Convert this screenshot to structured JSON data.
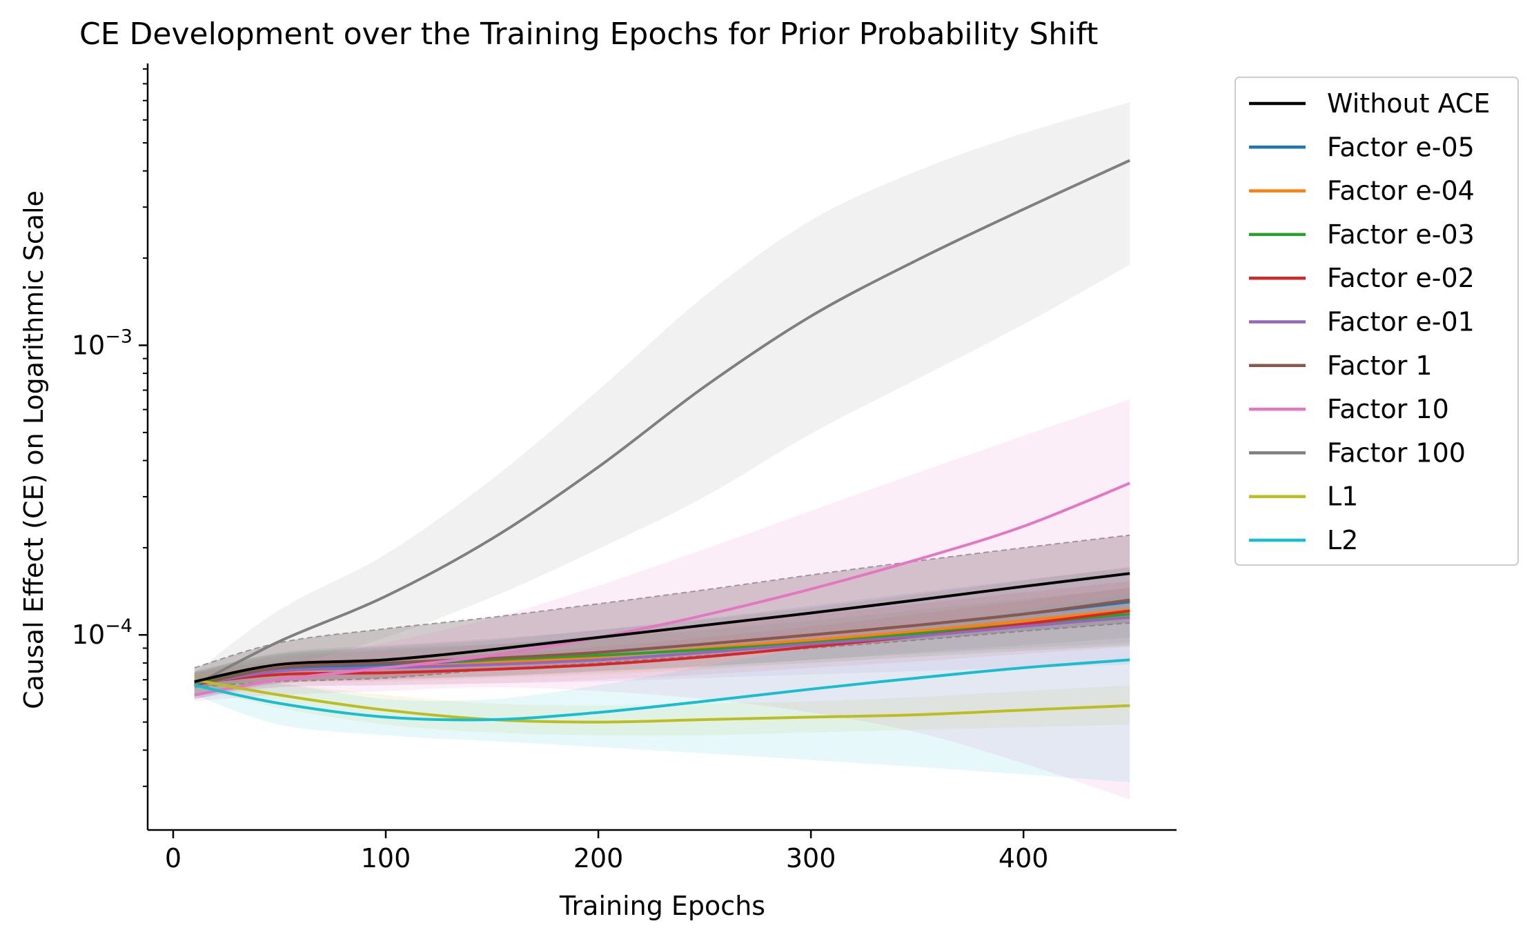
{
  "chart_data": {
    "type": "line",
    "title": "CE Development over the Training Epochs for Prior Probability Shift",
    "xlabel": "Training Epochs",
    "ylabel": "Causal Effect (CE) on Logarithmic Scale",
    "y_scale": "log",
    "xlim": [
      -12,
      472
    ],
    "ylim": [
      2.12e-05,
      0.0094
    ],
    "x_ticks": [
      0,
      100,
      200,
      300,
      400
    ],
    "y_major_ticks": [
      0.0001,
      0.001
    ],
    "y_major_labels": [
      {
        "base": "10",
        "exp": "−4"
      },
      {
        "base": "10",
        "exp": "−3"
      }
    ],
    "legend_position": "outside-right",
    "grid": false,
    "x": [
      10,
      50,
      100,
      150,
      200,
      250,
      300,
      350,
      400,
      450
    ],
    "series": [
      {
        "name": "Without ACE",
        "color": "#000000",
        "values": [
          6.9e-05,
          7.9e-05,
          8.2e-05,
          8.9e-05,
          9.8e-05,
          0.000108,
          0.000119,
          0.000132,
          0.000147,
          0.000163
        ],
        "band": {
          "lower": [
            6.6e-05,
            6.9e-05,
            7.1e-05,
            7.6e-05,
            8e-05,
            8.5e-05,
            9e-05,
            9.6e-05,
            0.000103,
            0.00011
          ],
          "upper": [
            7.7e-05,
            9.4e-05,
            0.000105,
            0.000115,
            0.000128,
            0.000143,
            0.000161,
            0.00018,
            0.0002,
            0.000221
          ],
          "color": "#7f6b6b",
          "opacity": 0.35,
          "dashed_edge": true
        }
      },
      {
        "name": "Factor e-05",
        "color": "#1f77b4",
        "values": [
          6.8e-05,
          7.6e-05,
          7.9e-05,
          8.2e-05,
          8.7e-05,
          9.3e-05,
          0.0001,
          0.000108,
          0.000118,
          0.00013
        ],
        "band": {
          "lower": [
            6e-05,
            6.8e-05,
            7e-05,
            7.2e-05,
            7.5e-05,
            7.8e-05,
            8.2e-05,
            8.6e-05,
            9e-05,
            9.4e-05
          ],
          "upper": [
            7.5e-05,
            8.6e-05,
            9.1e-05,
            9.6e-05,
            0.000104,
            0.000114,
            0.000126,
            0.00014,
            0.000155,
            0.00017
          ],
          "color": "#1f77b4",
          "opacity": 0.1
        }
      },
      {
        "name": "Factor e-04",
        "color": "#ff7f0e",
        "values": [
          6.8e-05,
          7.5e-05,
          7.7e-05,
          8e-05,
          8.4e-05,
          9e-05,
          9.6e-05,
          0.000103,
          0.000112,
          0.000122
        ],
        "band": {
          "lower": [
            6.2e-05,
            6.8e-05,
            6.9e-05,
            7.1e-05,
            7.3e-05,
            7.6e-05,
            8e-05,
            8.4e-05,
            8.8e-05,
            9.2e-05
          ],
          "upper": [
            7.4e-05,
            8.4e-05,
            8.8e-05,
            9.2e-05,
            9.8e-05,
            0.000107,
            0.000117,
            0.000128,
            0.00014,
            0.000153
          ],
          "color": "#ff7f0e",
          "opacity": 0.08
        }
      },
      {
        "name": "Factor e-03",
        "color": "#2ca02c",
        "values": [
          6.8e-05,
          7.7e-05,
          8e-05,
          8.2e-05,
          8.5e-05,
          8.9e-05,
          9.4e-05,
          0.000101,
          0.000109,
          0.000118
        ],
        "band": {
          "lower": [
            6.1e-05,
            6.9e-05,
            7.1e-05,
            7.2e-05,
            7.4e-05,
            7.7e-05,
            8e-05,
            8.4e-05,
            8.8e-05,
            9.2e-05
          ],
          "upper": [
            7.5e-05,
            8.6e-05,
            9e-05,
            9.3e-05,
            9.8e-05,
            0.000104,
            0.000112,
            0.000122,
            0.000133,
            0.000145
          ],
          "color": "#2ca02c",
          "opacity": 0.08
        }
      },
      {
        "name": "Factor e-02",
        "color": "#d62728",
        "values": [
          6.8e-05,
          7.3e-05,
          7.4e-05,
          7.6e-05,
          7.9e-05,
          8.4e-05,
          9.1e-05,
          9.9e-05,
          0.000109,
          0.000121
        ],
        "band": {
          "lower": [
            6.2e-05,
            6.6e-05,
            6.7e-05,
            6.8e-05,
            7e-05,
            7.3e-05,
            7.7e-05,
            8.1e-05,
            8.6e-05,
            9.1e-05
          ],
          "upper": [
            7.4e-05,
            8.1e-05,
            8.3e-05,
            8.6e-05,
            9.1e-05,
            9.8e-05,
            0.000107,
            0.000118,
            0.000131,
            0.000146
          ],
          "color": "#d62728",
          "opacity": 0.08
        }
      },
      {
        "name": "Factor e-01",
        "color": "#9467bd",
        "values": [
          6.7e-05,
          7.5e-05,
          7.7e-05,
          7.9e-05,
          8.2e-05,
          8.7e-05,
          9.3e-05,
          9.9e-05,
          0.000107,
          0.000115
        ],
        "band": {
          "lower": [
            6e-05,
            6.6e-05,
            6.7e-05,
            6.8e-05,
            6.9e-05,
            7.1e-05,
            7.3e-05,
            7.5e-05,
            7.7e-05,
            7.9e-05
          ],
          "upper": [
            7.4e-05,
            8.5e-05,
            8.9e-05,
            9.3e-05,
            9.9e-05,
            0.000107,
            0.000117,
            0.000128,
            0.00014,
            0.000153
          ],
          "color": "#9467bd",
          "opacity": 0.1
        }
      },
      {
        "name": "Factor 1",
        "color": "#8c564b",
        "values": [
          6.7e-05,
          7.7e-05,
          8e-05,
          8.3e-05,
          8.7e-05,
          9.3e-05,
          0.0001,
          0.000108,
          0.000118,
          0.000132
        ],
        "band": {
          "lower": [
            6e-05,
            6.8e-05,
            7e-05,
            7.2e-05,
            7.5e-05,
            7.8e-05,
            8.2e-05,
            8.7e-05,
            9.2e-05,
            9.8e-05
          ],
          "upper": [
            7.4e-05,
            8.7e-05,
            9.2e-05,
            9.7e-05,
            0.000104,
            0.000113,
            0.000124,
            0.000138,
            0.000154,
            0.000172
          ],
          "color": "#8c564b",
          "opacity": 0.1
        }
      },
      {
        "name": "Factor 10",
        "color": "#e377c2",
        "values": [
          6.2e-05,
          7e-05,
          7.7e-05,
          8.5e-05,
          9.8e-05,
          0.000117,
          0.000144,
          0.000182,
          0.000237,
          0.000334
        ],
        "band": {
          "lower": [
            5.9e-05,
            6.2e-05,
            6.4e-05,
            6.6e-05,
            6.4e-05,
            6e-05,
            5.4e-05,
            4.6e-05,
            3.6e-05,
            2.7e-05
          ],
          "upper": [
            6.7e-05,
            8e-05,
            9.4e-05,
            0.000114,
            0.000148,
            0.000198,
            0.000268,
            0.000363,
            0.000487,
            0.00065
          ],
          "color": "#e377c2",
          "opacity": 0.12
        }
      },
      {
        "name": "Factor 100",
        "color": "#7f7f7f",
        "values": [
          6.7e-05,
          9.5e-05,
          0.000136,
          0.000215,
          0.00038,
          0.00072,
          0.00126,
          0.00197,
          0.00295,
          0.00435
        ],
        "band": {
          "lower": [
            6.1e-05,
            7.6e-05,
            9.8e-05,
            0.000135,
            0.000198,
            0.0003,
            0.000495,
            0.000765,
            0.00118,
            0.0019
          ],
          "upper": [
            7.4e-05,
            0.000122,
            0.00019,
            0.000345,
            0.0007,
            0.00148,
            0.0027,
            0.004,
            0.0054,
            0.0069
          ],
          "color": "#7f7f7f",
          "opacity": 0.11
        }
      },
      {
        "name": "L1",
        "color": "#bcbd22",
        "values": [
          7e-05,
          6.2e-05,
          5.5e-05,
          5.1e-05,
          5e-05,
          5.1e-05,
          5.2e-05,
          5.3e-05,
          5.5e-05,
          5.7e-05
        ],
        "band": {
          "lower": [
            6.6e-05,
            5.6e-05,
            4.9e-05,
            4.6e-05,
            4.5e-05,
            4.5e-05,
            4.6e-05,
            4.7e-05,
            4.8e-05,
            4.9e-05
          ],
          "upper": [
            7.4e-05,
            6.8e-05,
            6.2e-05,
            5.8e-05,
            5.7e-05,
            5.8e-05,
            5.9e-05,
            6.1e-05,
            6.4e-05,
            6.7e-05
          ],
          "color": "#bcbd22",
          "opacity": 0.1
        }
      },
      {
        "name": "L2",
        "color": "#17becf",
        "values": [
          6.7e-05,
          5.8e-05,
          5.2e-05,
          5.1e-05,
          5.4e-05,
          5.9e-05,
          6.5e-05,
          7.1e-05,
          7.7e-05,
          8.2e-05
        ],
        "band": {
          "lower": [
            6.2e-05,
            4.9e-05,
            4.5e-05,
            4.3e-05,
            4.1e-05,
            3.9e-05,
            3.7e-05,
            3.5e-05,
            3.3e-05,
            3.1e-05
          ],
          "upper": [
            7.2e-05,
            6.8e-05,
            6e-05,
            6e-05,
            6.7e-05,
            7.8e-05,
            9.1e-05,
            0.000106,
            0.000122,
            0.000138
          ],
          "color": "#17becf",
          "opacity": 0.1
        }
      }
    ]
  }
}
